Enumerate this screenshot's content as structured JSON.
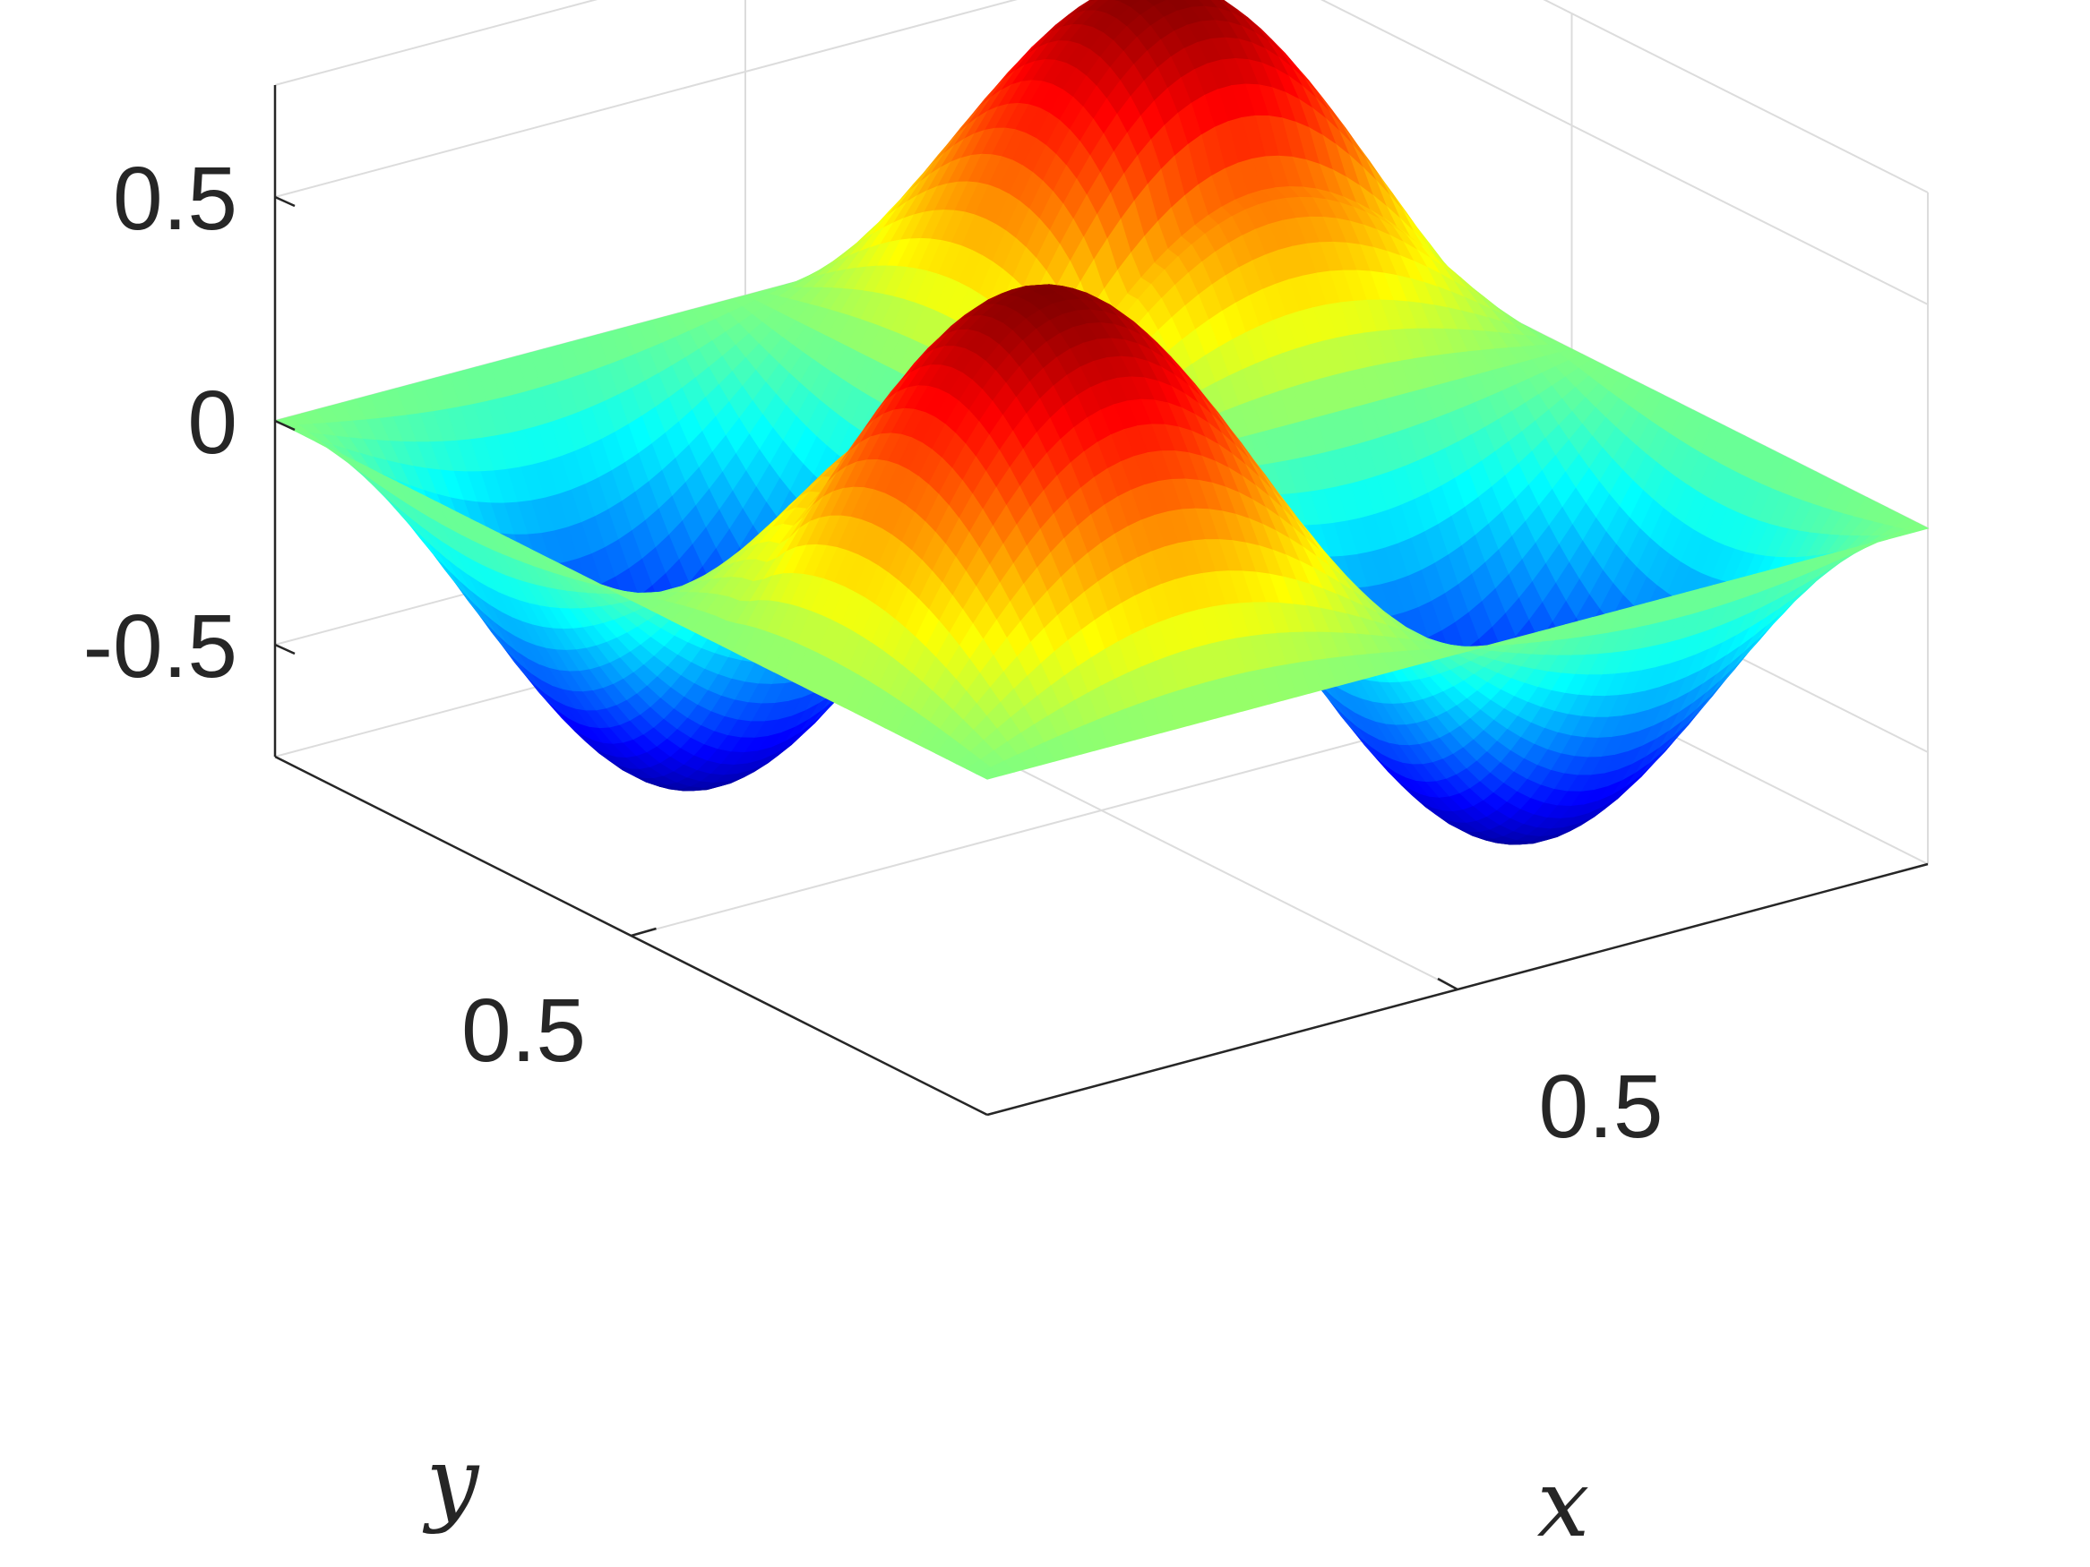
{
  "chart_data": {
    "type": "surface",
    "title": "",
    "xlabel": "x",
    "ylabel": "y",
    "zlabel": "",
    "xlim": [
      0,
      1
    ],
    "ylim": [
      0,
      1
    ],
    "zlim": [
      -0.75,
      0.75
    ],
    "x_ticks": [
      0.5
    ],
    "y_ticks": [
      0.5
    ],
    "z_ticks": [
      -0.5,
      0,
      0.5
    ],
    "x_tick_labels": [
      "0.5"
    ],
    "y_tick_labels": [
      "0.5"
    ],
    "z_tick_labels": [
      "-0.5",
      "0",
      "0.5"
    ],
    "grid": true,
    "colormap": "jet",
    "colormap_stops": [
      "#00008f",
      "#0000ff",
      "#00ffff",
      "#ffff00",
      "#ff0000",
      "#800000"
    ],
    "surface": {
      "amplitude": 0.75,
      "x_frequency": 2,
      "y_frequency": 2,
      "kinks": [
        {
          "y": 0.38,
          "x_from": 0.0,
          "x_to": 0.55
        },
        {
          "y": 0.62,
          "x_from": 0.45,
          "x_to": 1.0
        }
      ],
      "hole": {
        "x": 0.4,
        "y": 0.6,
        "radius": 0.08
      }
    }
  }
}
